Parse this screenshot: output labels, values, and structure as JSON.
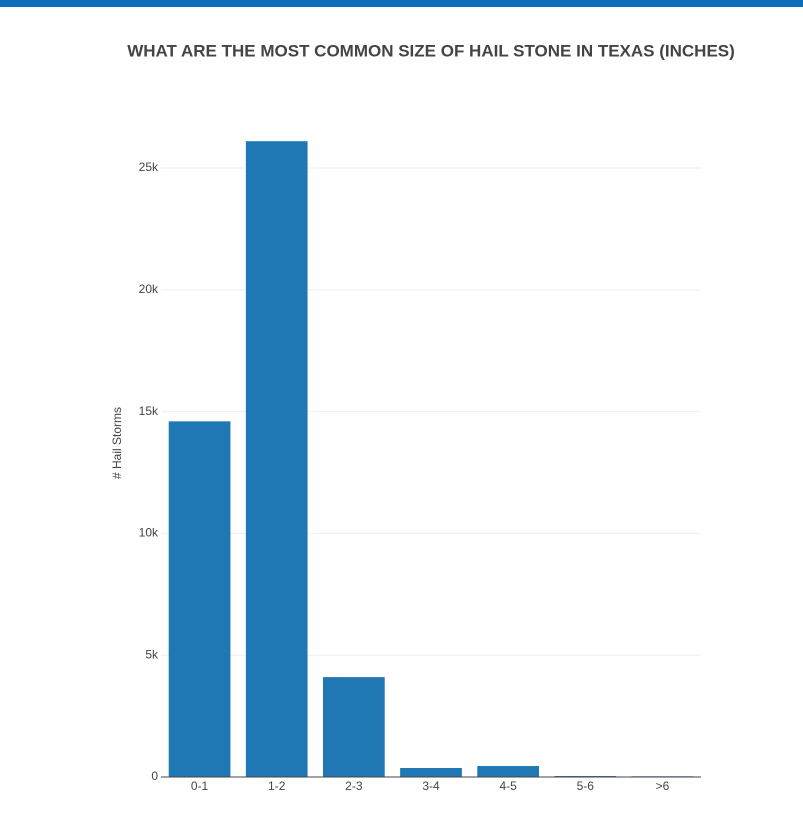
{
  "chart_data": {
    "type": "bar",
    "title": "WHAT ARE THE MOST COMMON SIZE OF HAIL STONE IN TEXAS (INCHES)",
    "y_label": "# Hail Storms",
    "categories": [
      "0-1",
      "1-2",
      "2-3",
      "3-4",
      "4-5",
      "5-6",
      ">6"
    ],
    "values": [
      14600,
      26100,
      4100,
      370,
      450,
      40,
      30
    ],
    "color": "#1f77b4",
    "ylim": [
      0,
      27500
    ],
    "yticks": [
      0,
      {
        "value": 5000,
        "label": "5k"
      },
      {
        "value": 10000,
        "label": "10k"
      },
      {
        "value": 15000,
        "label": "15k"
      },
      {
        "value": 20000,
        "label": "20k"
      },
      {
        "value": 25000,
        "label": "25k"
      }
    ],
    "grid": true
  }
}
